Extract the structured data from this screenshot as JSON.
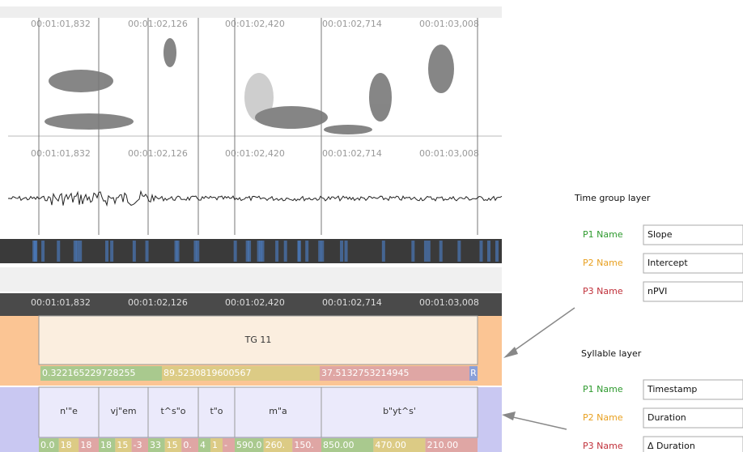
{
  "spectrogram": {
    "timestamps": [
      "00:01:01,832",
      "00:01:02,126",
      "00:01:02,420",
      "00:01:02,714",
      "00:01:03,008"
    ]
  },
  "waveform": {
    "timestamps": [
      "00:01:01,832",
      "00:01:02,126",
      "00:01:02,420",
      "00:01:02,714",
      "00:01:03,008"
    ]
  },
  "timeline": {
    "timestamps": [
      "00:01:01,832",
      "00:01:02,126",
      "00:01:02,420",
      "00:01:02,714",
      "00:01:03,008"
    ]
  },
  "time_group": {
    "label": "TG 11",
    "values": [
      "0.322165229728255",
      "89.5230819600567",
      "37.5132753214945"
    ],
    "flag": "R"
  },
  "syllables": [
    {
      "label": "n'\"e",
      "values": [
        "0.0",
        "18",
        "18"
      ]
    },
    {
      "label": "vj\"em",
      "values": [
        "18",
        "15",
        "-3"
      ]
    },
    {
      "label": "t^s\"o",
      "values": [
        "33",
        "15",
        "0."
      ]
    },
    {
      "label": "t\"o",
      "values": [
        "4",
        "1",
        "-"
      ]
    },
    {
      "label": "m\"a",
      "values": [
        "590.0",
        "260.",
        "150."
      ]
    },
    {
      "label": "b\"yt^s'",
      "values": [
        "850.00",
        "470.00",
        "210.00"
      ]
    }
  ],
  "panels": [
    {
      "title": "Time group layer",
      "fields": [
        {
          "name": "P1 Name",
          "value": "Slope"
        },
        {
          "name": "P2 Name",
          "value": "Intercept"
        },
        {
          "name": "P3 Name",
          "value": "nPVI"
        }
      ]
    },
    {
      "title": "Syllable layer",
      "fields": [
        {
          "name": "P1 Name",
          "value": "Timestamp"
        },
        {
          "name": "P2 Name",
          "value": "Duration"
        },
        {
          "name": "P3 Name",
          "value": "Δ Duration"
        }
      ]
    }
  ]
}
